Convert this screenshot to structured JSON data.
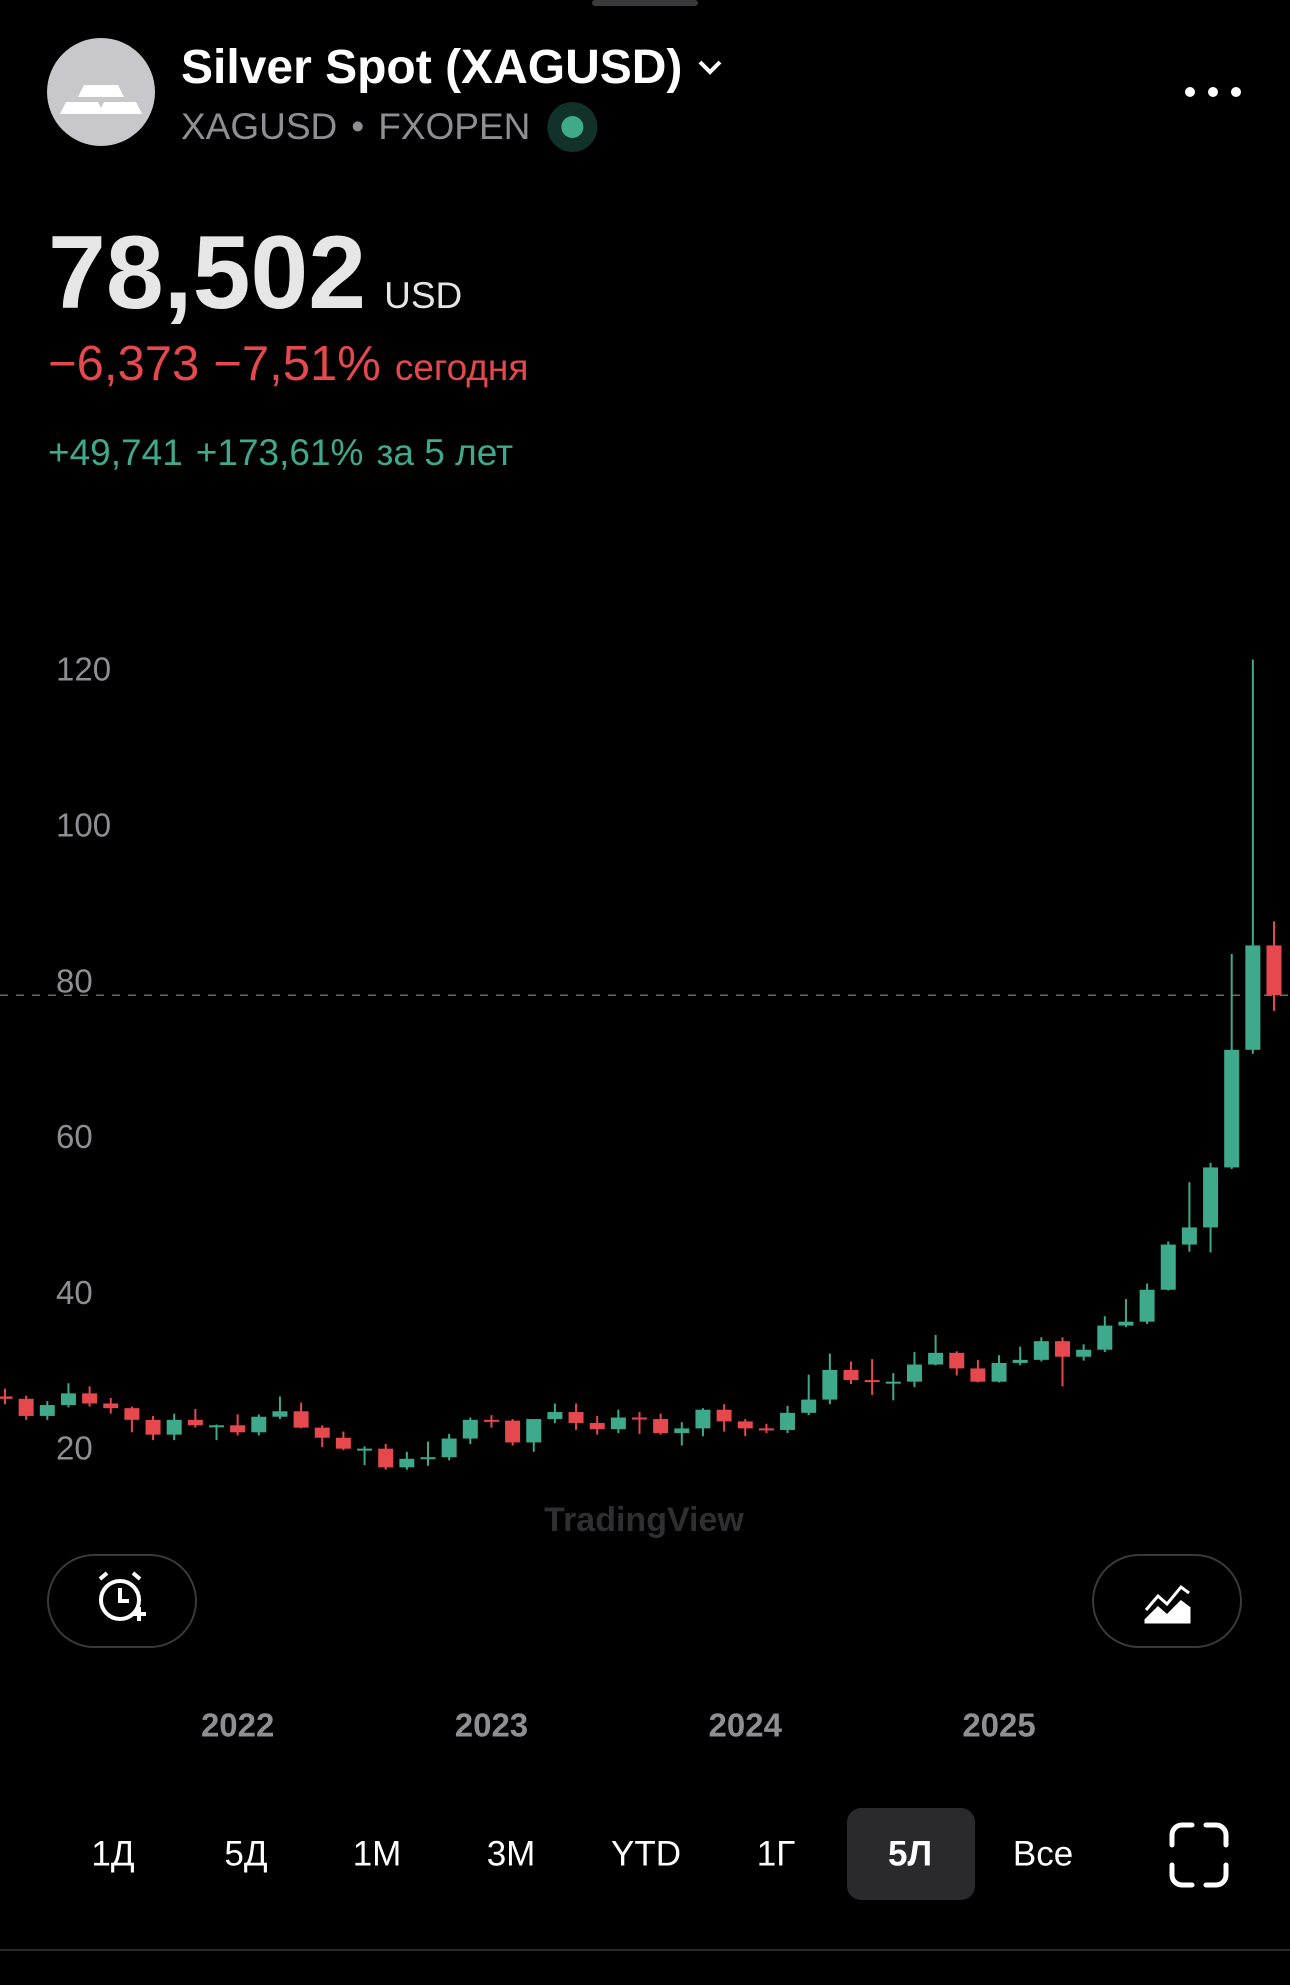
{
  "header": {
    "title": "Silver Spot (XAGUSD)",
    "symbol": "XAGUSD",
    "exchange": "FXOPEN"
  },
  "quote": {
    "price": "78,502",
    "currency": "USD",
    "change": "−6,373",
    "change_percent": "−7,51%",
    "change_period": "сегодня",
    "long_change": "+49,741",
    "long_change_percent": "+173,61%",
    "long_period": "за 5 лет"
  },
  "watermark": "TradingView",
  "ranges": [
    "1Д",
    "5Д",
    "1М",
    "3М",
    "YTD",
    "1Г",
    "5Л",
    "Все"
  ],
  "chart_data": {
    "type": "candlestick",
    "up_color": "#3fa98c",
    "down_color": "#e5484d",
    "ylim": [
      20,
      120
    ],
    "yticks": [
      20,
      40,
      60,
      80,
      100,
      120
    ],
    "xticks": [
      {
        "value": 11,
        "label": "2022"
      },
      {
        "value": 23,
        "label": "2023"
      },
      {
        "value": 35,
        "label": "2024"
      },
      {
        "value": 47,
        "label": "2025"
      }
    ],
    "last_price": 78.502,
    "open": [
      27.0,
      26.7,
      24.5,
      25.9,
      27.4,
      26.1,
      25.5,
      24.0,
      22.1,
      24.0,
      23.3,
      23.3,
      22.4,
      24.4,
      25.1,
      23.0,
      21.7,
      20.3,
      20.3,
      17.9,
      19.0,
      19.2,
      21.6,
      24.0,
      23.9,
      21.1,
      24.1,
      25.0,
      23.6,
      22.8,
      24.3,
      24.1,
      22.3,
      22.9,
      25.3,
      23.8,
      22.9,
      22.7,
      24.9,
      26.6,
      30.4,
      29.1,
      28.9,
      28.9,
      31.1,
      32.6,
      30.6,
      28.9,
      31.3,
      31.7,
      34.1,
      32.1,
      33.0,
      36.1,
      36.6,
      40.7,
      46.5,
      48.7,
      56.4,
      71.5,
      84.9
    ],
    "high": [
      28.0,
      27.1,
      26.4,
      28.7,
      28.3,
      26.8,
      25.7,
      24.5,
      24.8,
      25.4,
      23.4,
      24.7,
      24.7,
      27.0,
      26.2,
      23.3,
      22.5,
      20.6,
      20.9,
      19.9,
      21.2,
      22.2,
      24.3,
      24.6,
      24.1,
      24.1,
      26.1,
      26.1,
      24.5,
      25.3,
      25.0,
      24.8,
      23.7,
      25.5,
      26.0,
      24.1,
      23.5,
      25.8,
      29.8,
      32.5,
      31.5,
      31.8,
      30.0,
      32.7,
      34.9,
      32.8,
      31.7,
      32.3,
      33.4,
      34.6,
      34.6,
      33.7,
      37.3,
      39.5,
      41.5,
      46.9,
      54.5,
      57.0,
      83.8,
      121.6,
      88.0
    ],
    "low": [
      26.0,
      24.0,
      24.0,
      25.6,
      25.7,
      24.8,
      22.4,
      21.4,
      21.4,
      23.0,
      21.4,
      22.0,
      22.0,
      24.1,
      22.9,
      20.5,
      20.1,
      18.2,
      17.6,
      17.6,
      18.1,
      18.8,
      20.9,
      23.0,
      20.7,
      19.9,
      23.6,
      22.7,
      22.1,
      22.3,
      22.2,
      22.1,
      20.7,
      21.9,
      22.5,
      21.9,
      22.3,
      22.3,
      24.6,
      26.0,
      28.6,
      27.2,
      26.5,
      28.2,
      31.0,
      29.7,
      28.8,
      28.8,
      31.0,
      31.5,
      28.3,
      31.6,
      32.7,
      35.9,
      36.3,
      40.6,
      45.6,
      45.5,
      56.2,
      71.0,
      76.5
    ],
    "close": [
      26.7,
      24.5,
      25.9,
      27.4,
      26.1,
      25.5,
      24.0,
      22.1,
      24.0,
      23.3,
      23.3,
      22.4,
      24.4,
      25.1,
      23.0,
      21.7,
      20.3,
      20.3,
      17.9,
      19.0,
      19.2,
      21.6,
      24.0,
      23.9,
      21.1,
      24.1,
      25.0,
      23.6,
      22.8,
      24.3,
      24.1,
      22.3,
      22.9,
      25.3,
      23.8,
      22.9,
      22.7,
      24.9,
      26.6,
      30.4,
      29.1,
      28.9,
      28.9,
      31.1,
      32.6,
      30.6,
      28.9,
      31.3,
      31.7,
      34.1,
      32.1,
      33.0,
      36.1,
      36.6,
      40.7,
      46.5,
      48.7,
      56.4,
      71.5,
      84.9,
      78.5
    ]
  }
}
